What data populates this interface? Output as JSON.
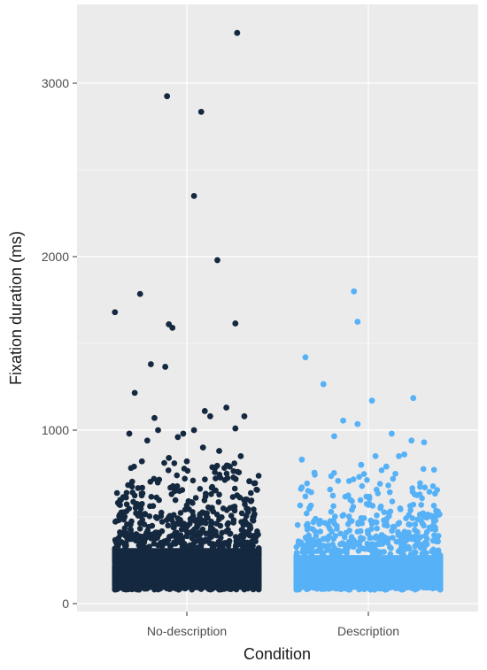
{
  "chart_data": {
    "type": "scatter",
    "subtype": "jitter-strip",
    "xlabel": "Condition",
    "ylabel": "Fixation duration (ms)",
    "categories": [
      "No-description",
      "Description"
    ],
    "ylim": [
      -40,
      3330
    ],
    "yticks": [
      0,
      1000,
      2000,
      3000
    ],
    "grid": true,
    "legend": "none",
    "panel_background": "#ebebeb",
    "grid_color": "#ffffff",
    "series": [
      {
        "category": "No-description",
        "color": "#14283f",
        "dense_range": [
          80,
          320
        ],
        "outliers": [
          {
            "x": -0.4,
            "y": 1680
          },
          {
            "x": -0.26,
            "y": 1785
          },
          {
            "x": -0.11,
            "y": 2925
          },
          {
            "x": -0.1,
            "y": 1610
          },
          {
            "x": -0.08,
            "y": 1590
          },
          {
            "x": -0.2,
            "y": 1380
          },
          {
            "x": -0.12,
            "y": 1365
          },
          {
            "x": 0.04,
            "y": 2350
          },
          {
            "x": 0.08,
            "y": 2835
          },
          {
            "x": 0.17,
            "y": 1980
          },
          {
            "x": 0.28,
            "y": 3290
          },
          {
            "x": 0.27,
            "y": 1615
          },
          {
            "x": -0.29,
            "y": 1215
          },
          {
            "x": 0.22,
            "y": 1130
          },
          {
            "x": 0.32,
            "y": 1080
          },
          {
            "x": -0.18,
            "y": 1070
          }
        ],
        "scatter_points": [
          {
            "x": -0.32,
            "y": 980
          },
          {
            "x": -0.22,
            "y": 940
          },
          {
            "x": -0.05,
            "y": 960
          },
          {
            "x": 0.04,
            "y": 1000
          },
          {
            "x": 0.1,
            "y": 1110
          },
          {
            "x": 0.13,
            "y": 1080
          },
          {
            "x": 0.27,
            "y": 1010
          },
          {
            "x": -0.16,
            "y": 1000
          },
          {
            "x": -0.1,
            "y": 840
          },
          {
            "x": 0.0,
            "y": 820
          },
          {
            "x": 0.18,
            "y": 880
          },
          {
            "x": -0.25,
            "y": 820
          },
          {
            "x": 0.3,
            "y": 850
          },
          {
            "x": 0.09,
            "y": 900
          },
          {
            "x": -0.02,
            "y": 980
          }
        ],
        "density": [
          {
            "from": 320,
            "to": 420,
            "count": 210
          },
          {
            "from": 420,
            "to": 520,
            "count": 110
          },
          {
            "from": 520,
            "to": 620,
            "count": 70
          },
          {
            "from": 620,
            "to": 720,
            "count": 45
          },
          {
            "from": 720,
            "to": 820,
            "count": 28
          }
        ]
      },
      {
        "category": "Description",
        "color": "#56b1f7",
        "dense_range": [
          80,
          280
        ],
        "outliers": [
          {
            "x": -0.35,
            "y": 1420
          },
          {
            "x": -0.25,
            "y": 1265
          },
          {
            "x": -0.08,
            "y": 1800
          },
          {
            "x": -0.06,
            "y": 1625
          },
          {
            "x": -0.14,
            "y": 1055
          },
          {
            "x": -0.06,
            "y": 1035
          },
          {
            "x": 0.02,
            "y": 1170
          },
          {
            "x": 0.25,
            "y": 1185
          },
          {
            "x": -0.19,
            "y": 965
          },
          {
            "x": 0.13,
            "y": 980
          }
        ],
        "scatter_points": [
          {
            "x": -0.37,
            "y": 830
          },
          {
            "x": -0.3,
            "y": 755
          },
          {
            "x": 0.04,
            "y": 850
          },
          {
            "x": 0.17,
            "y": 850
          },
          {
            "x": 0.2,
            "y": 860
          },
          {
            "x": 0.31,
            "y": 930
          },
          {
            "x": 0.24,
            "y": 940
          },
          {
            "x": -0.04,
            "y": 800
          },
          {
            "x": 0.1,
            "y": 790
          }
        ],
        "density": [
          {
            "from": 280,
            "to": 380,
            "count": 170
          },
          {
            "from": 380,
            "to": 480,
            "count": 90
          },
          {
            "from": 480,
            "to": 580,
            "count": 55
          },
          {
            "from": 580,
            "to": 680,
            "count": 32
          },
          {
            "from": 680,
            "to": 780,
            "count": 18
          }
        ]
      }
    ]
  }
}
